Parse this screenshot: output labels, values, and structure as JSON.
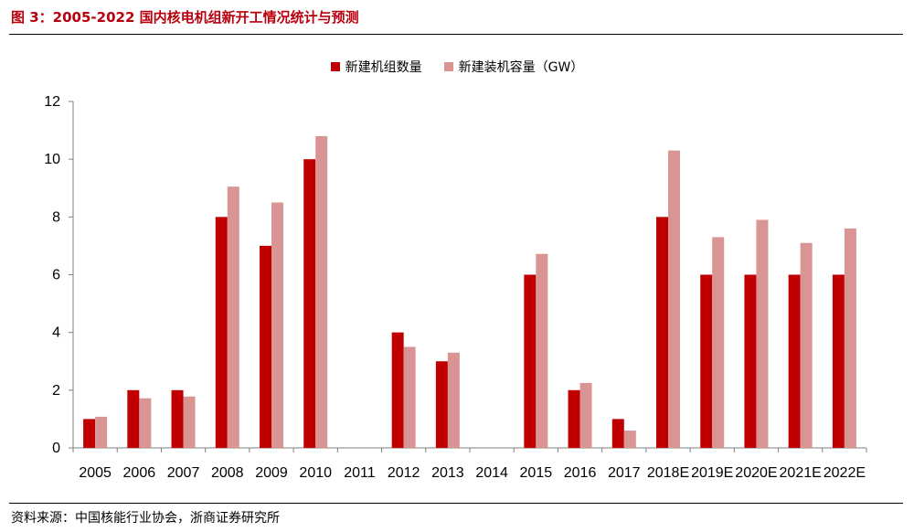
{
  "header": {
    "title": "图 3：2005-2022 国内核电机组新开工情况统计与预测"
  },
  "footer": {
    "source": "资料来源：中国核能行业协会，浙商证券研究所"
  },
  "chart_data": {
    "type": "bar",
    "categories": [
      "2005",
      "2006",
      "2007",
      "2008",
      "2009",
      "2010",
      "2011",
      "2012",
      "2013",
      "2014",
      "2015",
      "2016",
      "2017",
      "2018E",
      "2019E",
      "2020E",
      "2021E",
      "2022E"
    ],
    "series": [
      {
        "name": "新建机组数量",
        "color": "#c00000",
        "values": [
          1,
          2,
          2,
          8,
          7,
          10,
          0,
          4,
          3,
          0,
          6,
          2,
          1,
          8,
          6,
          6,
          6,
          6
        ]
      },
      {
        "name": "新建装机容量（GW）",
        "color": "#d99594",
        "values": [
          1.08,
          1.72,
          1.78,
          9.05,
          8.5,
          10.8,
          0,
          3.5,
          3.3,
          0,
          6.72,
          2.25,
          0.6,
          10.3,
          7.3,
          7.9,
          7.1,
          7.6
        ]
      }
    ],
    "ylim": [
      0,
      12
    ],
    "yticks": [
      0,
      2,
      4,
      6,
      8,
      10,
      12
    ],
    "legend_position": "top-center",
    "grid": false
  }
}
